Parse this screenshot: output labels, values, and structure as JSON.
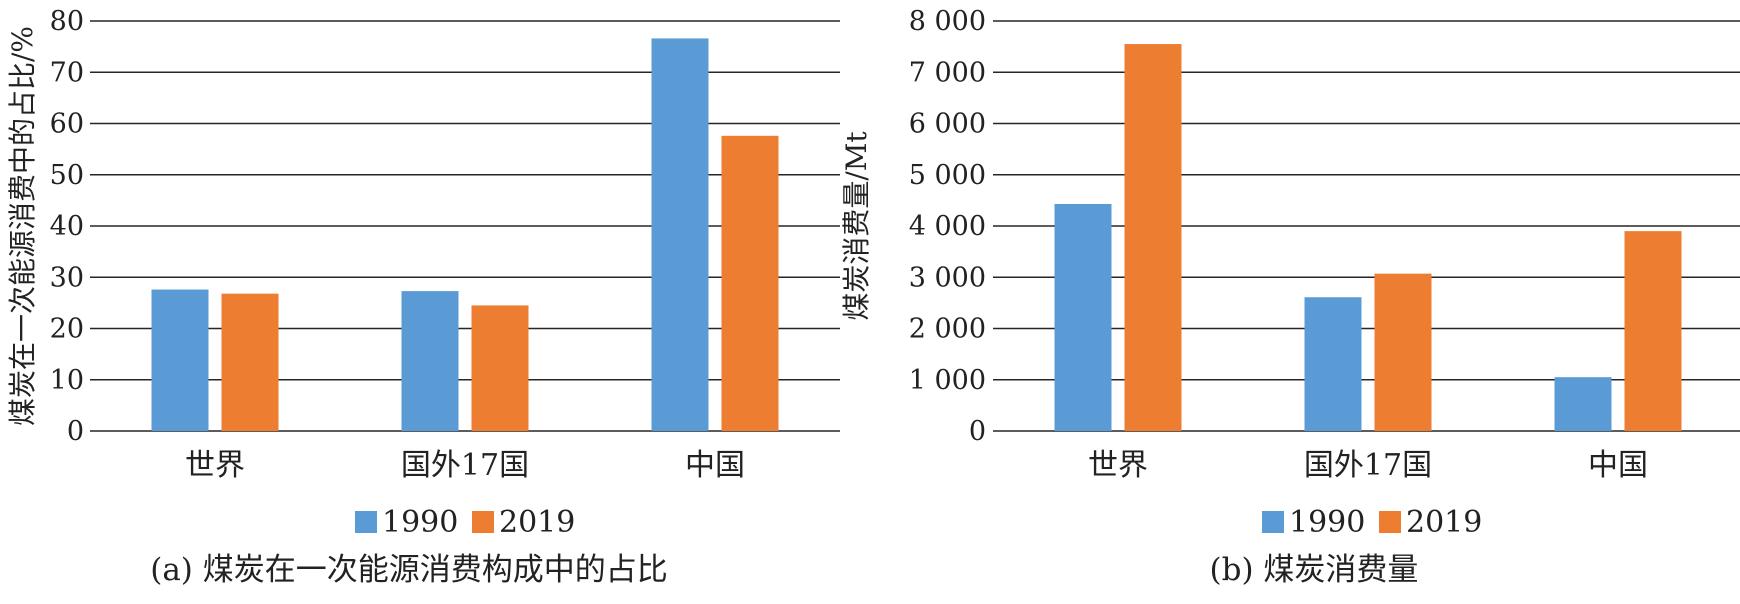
{
  "colors": {
    "series_1990": "#5b9bd5",
    "series_2019": "#ed7d31"
  },
  "chart_data": [
    {
      "type": "bar",
      "title": "",
      "caption": "(a) 煤炭在一次能源消费构成中的占比",
      "xlabel": "",
      "ylabel": "煤炭在一次能源消费中的占比/%",
      "categories": [
        "世界",
        "国外17国",
        "中国"
      ],
      "ylim": [
        0,
        80
      ],
      "yticks": [
        0,
        10,
        20,
        30,
        40,
        50,
        60,
        70,
        80
      ],
      "ytick_labels": [
        "0",
        "10",
        "20",
        "30",
        "40",
        "50",
        "60",
        "70",
        "80"
      ],
      "grid": true,
      "legend_position": "bottom",
      "series": [
        {
          "name": "1990",
          "values": [
            27.6,
            27.3,
            76.6
          ]
        },
        {
          "name": "2019",
          "values": [
            26.8,
            24.5,
            57.6
          ]
        }
      ]
    },
    {
      "type": "bar",
      "title": "",
      "caption": "(b) 煤炭消费量",
      "xlabel": "",
      "ylabel": "煤炭消费量/Mt",
      "categories": [
        "世界",
        "国外17国",
        "中国"
      ],
      "ylim": [
        0,
        8000
      ],
      "yticks": [
        0,
        1000,
        2000,
        3000,
        4000,
        5000,
        6000,
        7000,
        8000
      ],
      "ytick_labels": [
        "0",
        "1 000",
        "2 000",
        "3 000",
        "4 000",
        "5 000",
        "6 000",
        "7 000",
        "8 000"
      ],
      "grid": true,
      "legend_position": "bottom",
      "series": [
        {
          "name": "1990",
          "values": [
            4430,
            2610,
            1050
          ]
        },
        {
          "name": "2019",
          "values": [
            7550,
            3070,
            3900
          ]
        }
      ]
    }
  ]
}
